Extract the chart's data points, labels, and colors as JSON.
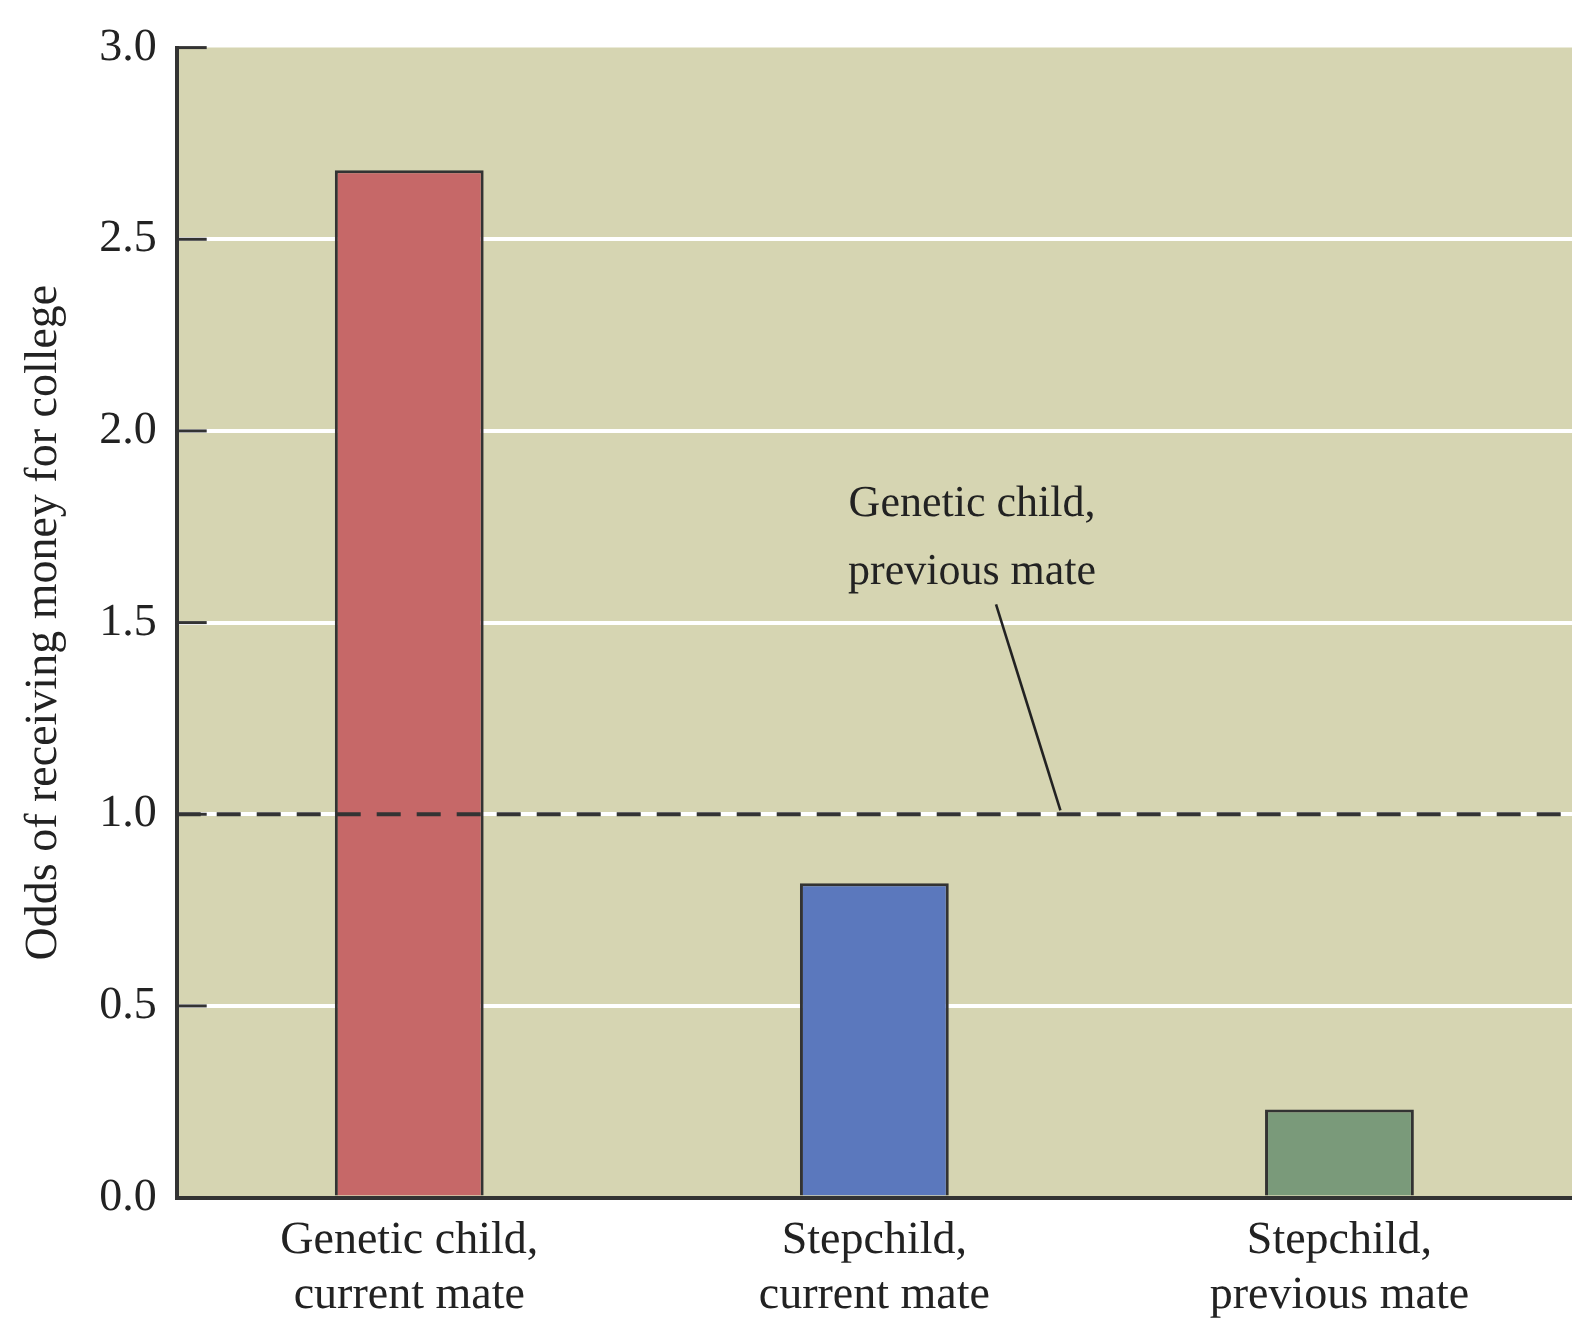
{
  "chart_data": {
    "type": "bar",
    "ylabel": "Odds of receiving money for college",
    "categories": [
      "Genetic child,\ncurrent mate",
      "Stepchild,\ncurrent mate",
      "Stepchild,\nprevious mate"
    ],
    "values": [
      2.68,
      0.82,
      0.23
    ],
    "colors": [
      "#c66868",
      "#5b78bd",
      "#7a9a7a"
    ],
    "ylim": [
      0,
      3
    ],
    "yticks": [
      {
        "value": 0,
        "label": "0.0"
      },
      {
        "value": 0.5,
        "label": "0.5"
      },
      {
        "value": 1,
        "label": "1.0"
      },
      {
        "value": 1.5,
        "label": "1.5"
      },
      {
        "value": 2,
        "label": "2.0"
      },
      {
        "value": 2.5,
        "label": "2.5"
      },
      {
        "value": 3,
        "label": "3.0"
      }
    ],
    "grid": "y",
    "legend": false,
    "ref_lines": [
      {
        "axis": "y",
        "value": 1,
        "label": "Genetic child,\nprevious mate",
        "color": "#333333",
        "line_style": "dashed"
      }
    ]
  }
}
